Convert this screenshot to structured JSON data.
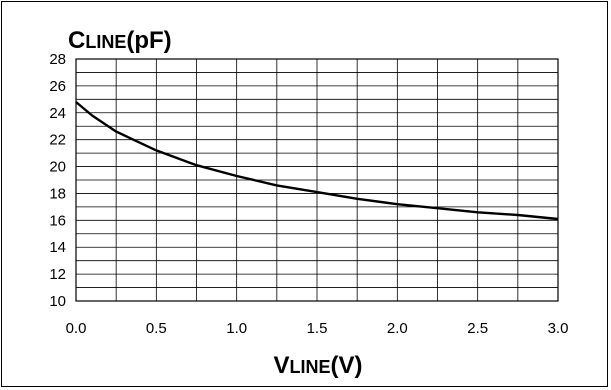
{
  "chart_data": {
    "type": "line",
    "title": "CLINE(pF)",
    "ylabel": "CLINE(pF)",
    "ylabel_parts": {
      "main": "C",
      "sub": "LINE",
      "unit": "(pF)"
    },
    "xlabel": "VLINE(V)",
    "xlabel_parts": {
      "main": "V",
      "sub": "LINE",
      "unit": "(V)"
    },
    "xlim": [
      0,
      3
    ],
    "ylim": [
      10,
      28
    ],
    "x_ticks": [
      "0.0",
      "0.5",
      "1.0",
      "1.5",
      "2.0",
      "2.5",
      "3.0"
    ],
    "y_ticks": [
      "28",
      "26",
      "24",
      "22",
      "20",
      "18",
      "16",
      "14",
      "12",
      "10"
    ],
    "grid": true,
    "series": [
      {
        "color": "#000000",
        "x": [
          0.0,
          0.1,
          0.25,
          0.5,
          0.75,
          1.0,
          1.25,
          1.5,
          1.75,
          2.0,
          2.25,
          2.5,
          2.75,
          3.0
        ],
        "y": [
          24.8,
          23.8,
          22.6,
          21.2,
          20.1,
          19.3,
          18.6,
          18.1,
          17.6,
          17.2,
          16.9,
          16.6,
          16.4,
          16.1
        ]
      }
    ]
  }
}
